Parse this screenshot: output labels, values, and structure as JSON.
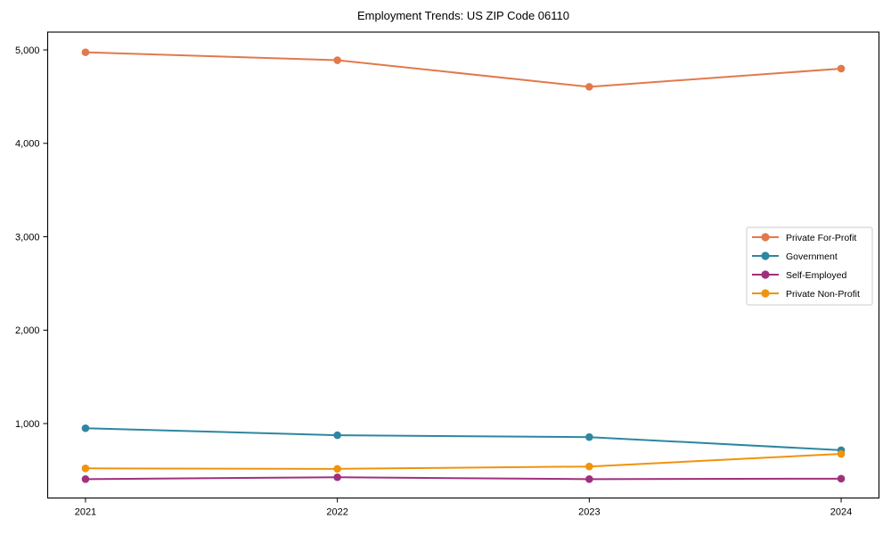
{
  "chart_data": {
    "type": "line",
    "title": "Employment Trends: US ZIP Code 06110",
    "categories": [
      "2021",
      "2022",
      "2023",
      "2024"
    ],
    "series": [
      {
        "name": "Private For-Profit",
        "color": "#E2794B",
        "values": [
          4975,
          4890,
          4605,
          4800
        ]
      },
      {
        "name": "Government",
        "color": "#2E86A1",
        "values": [
          950,
          875,
          855,
          715
        ]
      },
      {
        "name": "Self-Employed",
        "color": "#A0307E",
        "values": [
          405,
          425,
          405,
          410
        ]
      },
      {
        "name": "Private Non-Profit",
        "color": "#F0930D",
        "values": [
          520,
          515,
          540,
          675
        ]
      }
    ],
    "xlabel": "",
    "ylabel": "",
    "y_ticks": [
      1000,
      2000,
      3000,
      4000,
      5000
    ],
    "y_tick_labels": [
      "1,000",
      "2,000",
      "3,000",
      "4,000",
      "5,000"
    ],
    "ylim": [
      203,
      5191
    ],
    "grid": false,
    "legend_position": "center right",
    "marker": "o",
    "axis_color": "#000000",
    "legend_border_color": "#cccccc",
    "background_color": "#ffffff"
  }
}
